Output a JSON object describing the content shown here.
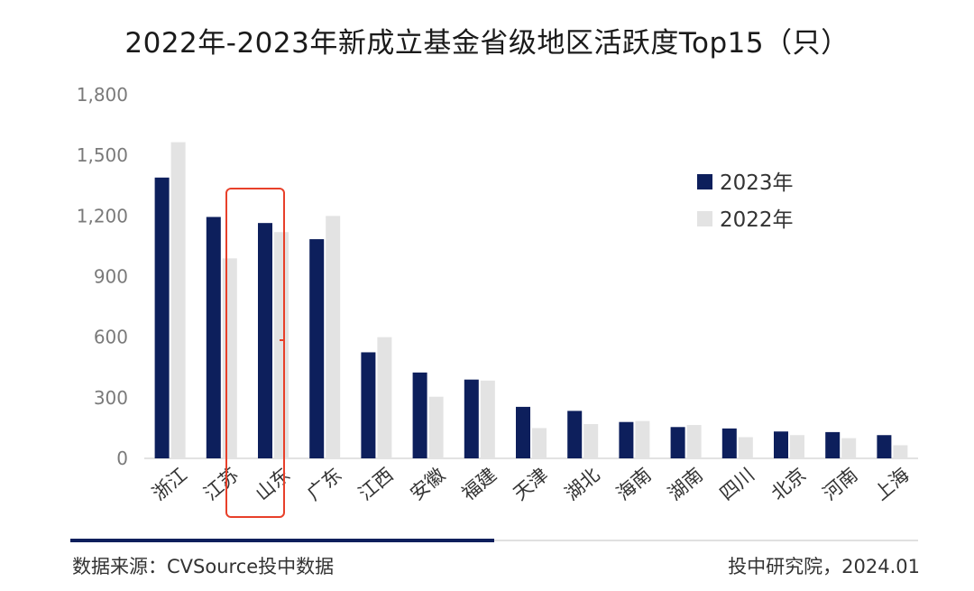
{
  "header": {
    "title": "2022年-2023年新成立基金省级地区活跃度Top15（只）"
  },
  "footer": {
    "source": "数据来源：CVSource投中数据",
    "credit": "投中研究院，2024.01"
  },
  "colors": {
    "series_2023": "#0d1f5c",
    "series_2022": "#e3e3e3",
    "highlight": "#e8402a",
    "axis_text": "#7a7a7a"
  },
  "chart_data": {
    "type": "bar",
    "title": "2022年-2023年新成立基金省级地区活跃度Top15（只）",
    "categories": [
      "浙江",
      "江苏",
      "山东",
      "广东",
      "江西",
      "安徽",
      "福建",
      "天津",
      "湖北",
      "海南",
      "湖南",
      "四川",
      "北京",
      "河南",
      "上海"
    ],
    "series": [
      {
        "name": "2023年",
        "values": [
          1390,
          1195,
          1165,
          1085,
          525,
          425,
          390,
          255,
          235,
          180,
          155,
          148,
          133,
          130,
          115
        ]
      },
      {
        "name": "2022年",
        "values": [
          1565,
          990,
          1120,
          1200,
          600,
          305,
          385,
          150,
          170,
          185,
          165,
          105,
          115,
          100,
          65
        ]
      }
    ],
    "yticks": [
      "0",
      "300",
      "600",
      "900",
      "1,200",
      "1,500",
      "1,800"
    ],
    "ylim": [
      0,
      1800
    ],
    "legend": "right",
    "highlighted_category": "山东",
    "grid": false
  }
}
